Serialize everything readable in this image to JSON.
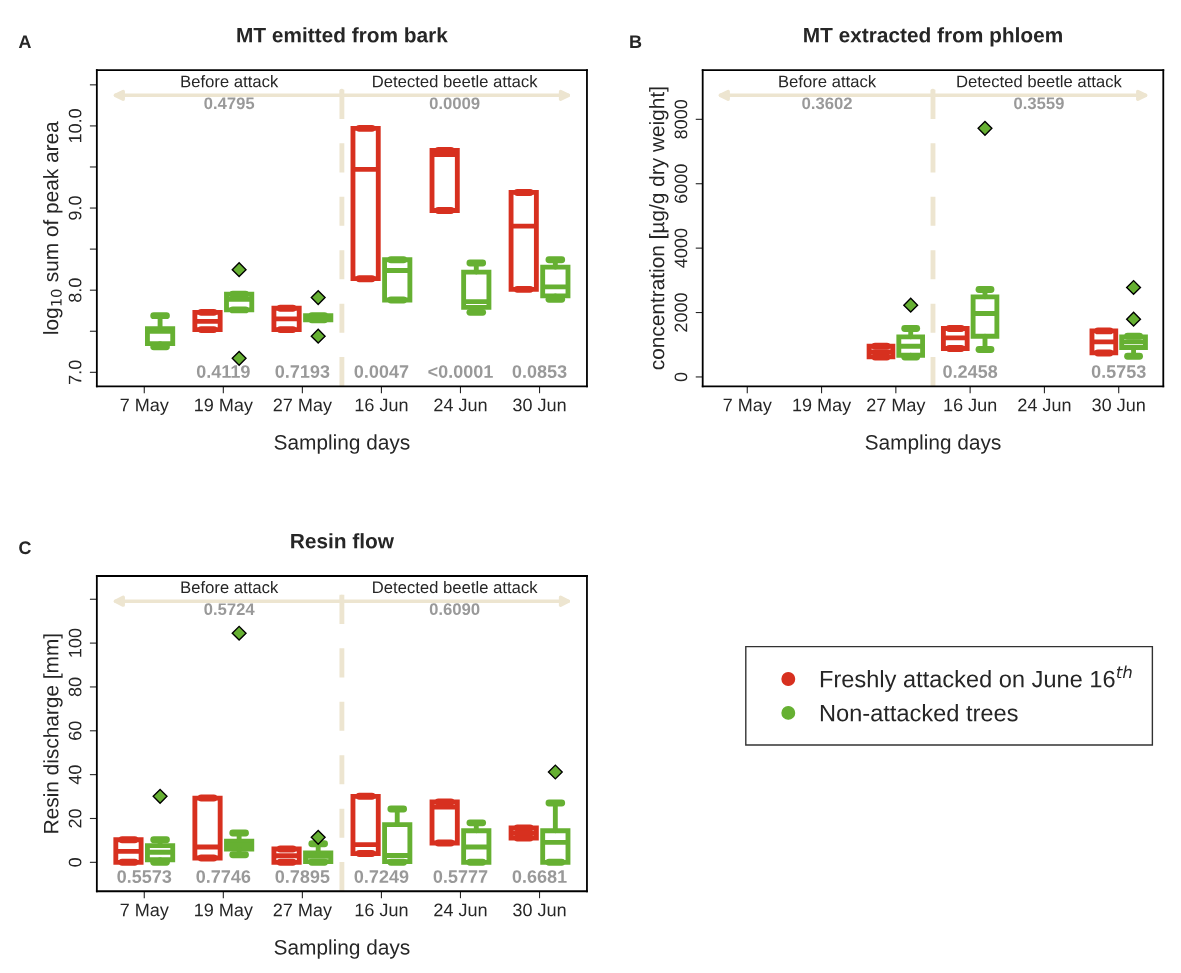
{
  "chart_data": [
    {
      "type": "box",
      "title": "MT emitted from bark",
      "xlabel": "Sampling days",
      "ylabel": "log$_{10}$ sum of peak area",
      "categories": [
        "7 May",
        "19 May",
        "27 May",
        "16 Jun",
        "24 Jun",
        "30 Jun"
      ],
      "ylim": [
        6.83,
        10.68
      ],
      "yticks": [
        {
          "value": 7.0,
          "label": "7.0"
        },
        {
          "value": 7.5,
          "label": null
        },
        {
          "value": 8.0,
          "label": "8.0"
        },
        {
          "value": 8.5,
          "label": null
        },
        {
          "value": 9.0,
          "label": "9.0"
        },
        {
          "value": 9.5,
          "label": null
        },
        {
          "value": 10.0,
          "label": "10.0"
        },
        {
          "value": 10.5,
          "label": null
        }
      ],
      "grid": false,
      "annotations": [
        "A",
        "Before attack",
        "0.4795",
        "Detected beetle attack",
        "0.0009",
        "0.4119",
        "0.7193",
        "0.0047",
        "<0.0001",
        "0.0853"
      ],
      "series": [
        {
          "color": "#d7301f",
          "boxes": [
            null,
            {
              "low": 7.52,
              "q1": 7.52,
              "median": 7.62,
              "q3": 7.73,
              "high": 7.73
            },
            {
              "low": 7.52,
              "q1": 7.52,
              "median": 7.65,
              "q3": 7.78,
              "high": 7.78
            },
            {
              "low": 8.14,
              "q1": 8.14,
              "median": 9.47,
              "q3": 9.97,
              "high": 9.97
            },
            {
              "low": 8.97,
              "q1": 8.97,
              "median": 9.65,
              "q3": 9.7,
              "high": 9.7
            },
            {
              "low": 8.01,
              "q1": 8.01,
              "median": 8.78,
              "q3": 9.19,
              "high": 9.19
            }
          ]
        },
        {
          "color": "#66b032",
          "boxes": [
            {
              "low": 7.31,
              "q1": 7.35,
              "median": 7.5,
              "q3": 7.53,
              "high": 7.69
            },
            {
              "low": 7.76,
              "q1": 7.76,
              "median": 7.89,
              "q3": 7.95,
              "high": 7.95,
              "outliers": [
                8.25,
                7.17
              ]
            },
            {
              "low": 7.64,
              "q1": 7.64,
              "median": 7.66,
              "q3": 7.69,
              "high": 7.69,
              "outliers": [
                7.91,
                7.44
              ]
            },
            {
              "low": 7.88,
              "q1": 7.88,
              "median": 8.24,
              "q3": 8.37,
              "high": 8.37
            },
            {
              "low": 7.73,
              "q1": 7.79,
              "median": 7.86,
              "q3": 8.22,
              "high": 8.33
            },
            {
              "low": 7.89,
              "q1": 7.93,
              "median": 8.04,
              "q3": 8.28,
              "high": 8.37
            }
          ]
        }
      ]
    },
    {
      "type": "box",
      "title": "MT extracted from phloem",
      "xlabel": "Sampling days",
      "ylabel": "concentration [µg/g dry weight]",
      "categories": [
        "7 May",
        "19 May",
        "27 May",
        "16 Jun",
        "24 Jun",
        "30 Jun"
      ],
      "ylim": [
        -290,
        9530
      ],
      "yticks": [
        0,
        2000,
        4000,
        6000,
        8000
      ],
      "grid": false,
      "annotations": [
        "B",
        "Before attack",
        "0.3602",
        "Detected beetle attack",
        "0.3559",
        "0.2458",
        "0.5753"
      ],
      "series": [
        {
          "color": "#d7301f",
          "boxes": [
            null,
            null,
            {
              "low": 622,
              "q1": 622,
              "median": 777,
              "q3": 954,
              "high": 954
            },
            {
              "low": 882,
              "q1": 882,
              "median": 1213,
              "q3": 1504,
              "high": 1504
            },
            null,
            {
              "low": 746,
              "q1": 746,
              "median": 1090,
              "q3": 1430,
              "high": 1430
            }
          ]
        },
        {
          "color": "#66b032",
          "boxes": [
            null,
            null,
            {
              "low": 622,
              "q1": 674,
              "median": 954,
              "q3": 1243,
              "high": 1504,
              "outliers": [
                2228
              ]
            },
            {
              "low": 852,
              "q1": 1265,
              "median": 1970,
              "q3": 2486,
              "high": 2716,
              "outliers": [
                7720
              ]
            },
            null,
            {
              "low": 643,
              "q1": 914,
              "median": 1088,
              "q3": 1243,
              "high": 1265,
              "outliers": [
                1793,
                2778
              ]
            }
          ]
        }
      ]
    },
    {
      "type": "box",
      "title": "Resin flow",
      "xlabel": "Sampling days",
      "ylabel": "Resin discharge [mm]",
      "categories": [
        "7 May",
        "19 May",
        "27 May",
        "16 Jun",
        "24 Jun",
        "30 Jun"
      ],
      "ylim": [
        -13.2,
        130.6
      ],
      "yticks": [
        0,
        20,
        40,
        60,
        80,
        100,
        {
          "value": 120,
          "label": null
        }
      ],
      "grid": false,
      "legend": "right",
      "annotations": [
        "C",
        "Before attack",
        "0.5724",
        "Detected beetle attack",
        "0.6090",
        "0.5573",
        "0.7746",
        "0.7895",
        "0.7249",
        "0.5777",
        "0.6681"
      ],
      "series": [
        {
          "name": "Freshly attacked on June 16$^{th}$",
          "color": "#d7301f",
          "boxes": [
            {
              "low": 0,
              "q1": 0,
              "median": 5,
              "q3": 10.3,
              "high": 10.3
            },
            {
              "low": 2.0,
              "q1": 2.0,
              "median": 7.0,
              "q3": 29.3,
              "high": 29.3
            },
            {
              "low": 0,
              "q1": 0,
              "median": 3,
              "q3": 6.1,
              "high": 6.1
            },
            {
              "low": 4.0,
              "q1": 4.0,
              "median": 8.1,
              "q3": 30.1,
              "high": 30.1
            },
            {
              "low": 8.8,
              "q1": 8.8,
              "median": 25.2,
              "q3": 27.5,
              "high": 27.5
            },
            {
              "low": 11.1,
              "q1": 11.1,
              "median": 13.4,
              "q3": 15.7,
              "high": 15.7
            }
          ]
        },
        {
          "name": "Non-attacked trees",
          "color": "#66b032",
          "boxes": [
            {
              "low": 0,
              "q1": 1.2,
              "median": 4.6,
              "q3": 7.6,
              "high": 10.3,
              "outliers": [
                30.1
              ]
            },
            {
              "low": 3.5,
              "q1": 6.1,
              "median": 8.1,
              "q3": 9.6,
              "high": 13.4,
              "outliers": [
                104.5
              ]
            },
            {
              "low": 0,
              "q1": 0.3,
              "median": 2.7,
              "q3": 4.3,
              "high": 8.5,
              "outliers": [
                11.4
              ]
            },
            {
              "low": 0,
              "q1": 0.3,
              "median": 3.1,
              "q3": 17.2,
              "high": 24.3
            },
            {
              "low": 0,
              "q1": 0,
              "median": 7.0,
              "q3": 14.4,
              "high": 18.0
            },
            {
              "low": 0,
              "q1": 0,
              "median": 9.1,
              "q3": 14.4,
              "high": 27.1,
              "outliers": [
                41.2
              ]
            }
          ]
        }
      ]
    }
  ]
}
